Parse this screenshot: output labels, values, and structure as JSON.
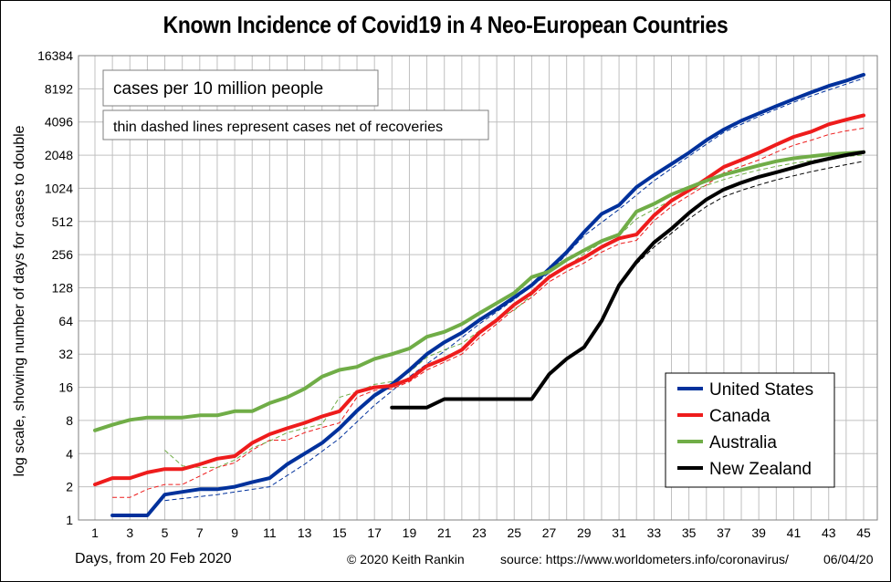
{
  "chart_data": {
    "type": "line",
    "title": "Known Incidence of Covid19 in 4 Neo-European Countries",
    "xlabel": "Days, from 20 Feb 2020",
    "ylabel": "log scale, showing number of days for cases to double",
    "y_scale": "log2",
    "ylim": [
      1,
      16384
    ],
    "xlim": [
      1,
      45
    ],
    "y_ticks": [
      1,
      2,
      4,
      8,
      16,
      32,
      64,
      128,
      256,
      512,
      1024,
      2048,
      4096,
      8192,
      16384
    ],
    "x_tick_labels": [
      1,
      3,
      5,
      7,
      9,
      11,
      13,
      15,
      17,
      19,
      21,
      23,
      25,
      27,
      29,
      31,
      33,
      35,
      37,
      39,
      41,
      43,
      45
    ],
    "grid": true,
    "legend_position": "bottom-right",
    "annotations": [
      "cases per 10 million people",
      "thin dashed lines represent cases net of recoveries"
    ],
    "series": [
      {
        "name": "United States",
        "color": "#00319c",
        "x": [
          2,
          3,
          4,
          5,
          6,
          7,
          8,
          9,
          10,
          11,
          12,
          13,
          14,
          15,
          16,
          17,
          18,
          19,
          20,
          21,
          22,
          23,
          24,
          25,
          26,
          27,
          28,
          29,
          30,
          31,
          32,
          33,
          34,
          35,
          36,
          37,
          38,
          39,
          40,
          41,
          42,
          43,
          44,
          45
        ],
        "values": [
          1.1,
          1.1,
          1.1,
          1.7,
          1.8,
          1.9,
          1.9,
          2.0,
          2.2,
          2.4,
          3.2,
          4.0,
          5.0,
          6.8,
          9.8,
          13.5,
          17,
          23,
          32,
          41,
          50,
          65,
          82,
          105,
          135,
          190,
          270,
          410,
          600,
          720,
          1050,
          1350,
          1700,
          2150,
          2800,
          3500,
          4200,
          4900,
          5700,
          6600,
          7600,
          8700,
          9700,
          11000
        ]
      },
      {
        "name": "Canada",
        "color": "#ee1c1c",
        "x": [
          1,
          2,
          3,
          4,
          5,
          6,
          7,
          8,
          9,
          10,
          11,
          12,
          13,
          14,
          15,
          16,
          17,
          18,
          19,
          20,
          21,
          22,
          23,
          24,
          25,
          26,
          27,
          28,
          29,
          30,
          31,
          32,
          33,
          34,
          35,
          36,
          37,
          38,
          39,
          40,
          41,
          42,
          43,
          44,
          45
        ],
        "values": [
          2.1,
          2.4,
          2.4,
          2.7,
          2.9,
          2.9,
          3.2,
          3.6,
          3.8,
          5.0,
          6.0,
          6.8,
          7.6,
          8.7,
          9.7,
          14.5,
          16,
          16.5,
          19,
          25,
          29,
          35,
          50,
          65,
          90,
          115,
          160,
          200,
          240,
          300,
          360,
          390,
          580,
          790,
          980,
          1250,
          1600,
          1850,
          2150,
          2550,
          3000,
          3350,
          3900,
          4300,
          4700
        ]
      },
      {
        "name": "Australia",
        "color": "#70ad47",
        "x": [
          1,
          2,
          3,
          4,
          5,
          6,
          7,
          8,
          9,
          10,
          11,
          12,
          13,
          14,
          15,
          16,
          17,
          18,
          19,
          20,
          21,
          22,
          23,
          24,
          25,
          26,
          27,
          28,
          29,
          30,
          31,
          32,
          33,
          34,
          35,
          36,
          37,
          38,
          39,
          40,
          41,
          42,
          43,
          44,
          45
        ],
        "values": [
          6.5,
          7.3,
          8.1,
          8.5,
          8.5,
          8.5,
          8.9,
          8.9,
          9.7,
          9.7,
          11.5,
          13,
          15.5,
          20,
          23,
          24.5,
          29,
          32,
          36,
          46,
          51,
          60,
          75,
          93,
          115,
          160,
          180,
          230,
          280,
          340,
          390,
          630,
          740,
          900,
          1040,
          1200,
          1360,
          1500,
          1650,
          1800,
          1920,
          2000,
          2080,
          2130,
          2180
        ]
      },
      {
        "name": "New Zealand",
        "color": "#000000",
        "x": [
          18,
          19,
          20,
          21,
          22,
          23,
          24,
          25,
          26,
          27,
          28,
          29,
          30,
          31,
          32,
          33,
          34,
          35,
          36,
          37,
          38,
          39,
          40,
          41,
          42,
          43,
          44,
          45
        ],
        "values": [
          10.5,
          10.5,
          10.5,
          12.5,
          12.5,
          12.5,
          12.5,
          12.5,
          12.5,
          21,
          29,
          37,
          64,
          135,
          220,
          330,
          440,
          610,
          810,
          1000,
          1150,
          1300,
          1430,
          1580,
          1750,
          1900,
          2050,
          2180
        ]
      }
    ],
    "net_of_recoveries": [
      {
        "name": "United States",
        "color": "#00319c",
        "x": [
          5,
          8,
          11,
          13,
          15,
          17,
          19,
          21,
          23,
          25,
          27,
          29,
          31,
          33,
          35,
          37,
          39,
          41,
          43,
          45
        ],
        "values": [
          1.5,
          1.7,
          2.0,
          3.2,
          5.5,
          11,
          20,
          34,
          60,
          100,
          175,
          380,
          660,
          1200,
          2000,
          3300,
          4600,
          6200,
          8000,
          10200
        ]
      },
      {
        "name": "Canada",
        "color": "#ee1c1c",
        "x": [
          2,
          3,
          4,
          5,
          6,
          7,
          8,
          9,
          10,
          11,
          12,
          13,
          14,
          15,
          16,
          17,
          18,
          19,
          20,
          21,
          22,
          23,
          24,
          25,
          26,
          27,
          28,
          29,
          30,
          31,
          32,
          33,
          34,
          35,
          36,
          37,
          38,
          39,
          40,
          41,
          42,
          43,
          44,
          45
        ],
        "values": [
          1.6,
          1.6,
          1.9,
          2.1,
          2.1,
          2.5,
          3.0,
          3.3,
          4.3,
          5.3,
          5.3,
          6.2,
          6.9,
          7.6,
          13,
          15,
          15.5,
          18,
          23,
          27,
          32,
          45,
          60,
          82,
          105,
          145,
          180,
          215,
          270,
          320,
          345,
          520,
          700,
          880,
          1100,
          1420,
          1620,
          1850,
          2180,
          2520,
          2800,
          3150,
          3400,
          3600
        ]
      },
      {
        "name": "Australia",
        "color": "#70ad47",
        "x": [
          5,
          6,
          7,
          8,
          9,
          10,
          11,
          12,
          13,
          14,
          15,
          16,
          17,
          18,
          19,
          20,
          21,
          22,
          23,
          24,
          25,
          26,
          27,
          28,
          29,
          30,
          31,
          32,
          33,
          34,
          35,
          36,
          37,
          38,
          39,
          40,
          41,
          42,
          43,
          44,
          45
        ],
        "values": [
          4.3,
          3.1,
          3.0,
          3.0,
          3.5,
          4.5,
          5.2,
          6.2,
          6.8,
          7.4,
          13,
          14.5,
          17,
          18,
          22,
          30,
          35,
          40,
          52,
          67,
          80,
          110,
          160,
          200,
          260,
          330,
          380,
          540,
          660,
          800,
          960,
          1090,
          1230,
          1370,
          1500,
          1620,
          1730,
          1830,
          1910,
          1990,
          2060
        ]
      },
      {
        "name": "New Zealand",
        "color": "#000000",
        "x": [
          32,
          33,
          34,
          35,
          36,
          37,
          38,
          39,
          40,
          41,
          42,
          43,
          44,
          45
        ],
        "values": [
          210,
          300,
          400,
          540,
          700,
          860,
          980,
          1100,
          1220,
          1330,
          1450,
          1560,
          1680,
          1800
        ]
      }
    ]
  },
  "footer": {
    "xlabel": "Days, from 20 Feb 2020",
    "credit": "© 2020  Keith  Rankin",
    "source": "source:  https://www.worldometers.info/coronavirus/",
    "date": "06/04/20"
  }
}
